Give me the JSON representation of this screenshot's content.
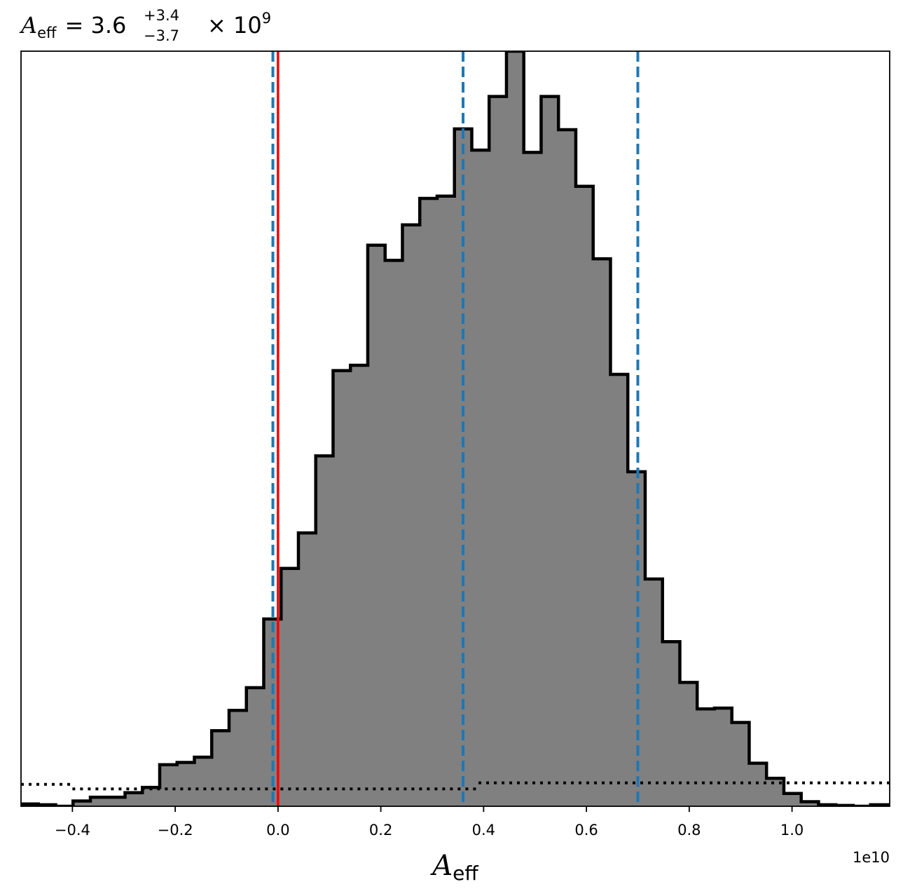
{
  "chart_data": {
    "type": "histogram",
    "title": {
      "variable": "A",
      "variable_sub": "eff",
      "equals": "= ",
      "median": "3.6",
      "plus": "+3.4",
      "minus": "−3.7",
      "times": " × 10",
      "exponent": "9"
    },
    "xlabel": {
      "variable": "A",
      "sub": "eff"
    },
    "x_offset_label": "1e10",
    "xlim": [
      -0.5,
      1.19
    ],
    "ylim": [
      0,
      1.0
    ],
    "x_ticks": [
      {
        "value": -0.4,
        "label": "−0.4"
      },
      {
        "value": -0.2,
        "label": "−0.2"
      },
      {
        "value": 0.0,
        "label": "0.0"
      },
      {
        "value": 0.2,
        "label": "0.2"
      },
      {
        "value": 0.4,
        "label": "0.4"
      },
      {
        "value": 0.6,
        "label": "0.6"
      },
      {
        "value": 0.8,
        "label": "0.8"
      },
      {
        "value": 1.0,
        "label": "1.0"
      }
    ],
    "histogram": {
      "bin_start": -0.5,
      "bin_width": 0.03373,
      "counts": [
        0.003,
        0.002,
        0.0,
        0.007,
        0.012,
        0.012,
        0.018,
        0.025,
        0.055,
        0.058,
        0.065,
        0.1,
        0.127,
        0.157,
        0.248,
        0.315,
        0.362,
        0.464,
        0.577,
        0.584,
        0.743,
        0.723,
        0.77,
        0.805,
        0.808,
        0.897,
        0.869,
        0.94,
        1.0,
        0.866,
        0.94,
        0.896,
        0.821,
        0.725,
        0.572,
        0.443,
        0.301,
        0.218,
        0.164,
        0.129,
        0.13,
        0.111,
        0.057,
        0.037,
        0.017,
        0.006,
        0.002,
        0.001,
        0.0,
        0.002
      ],
      "fill_color": "#808080",
      "edge_color": "#000000"
    },
    "prior": {
      "style": "dotted",
      "color": "#000000",
      "segments": [
        {
          "x0": -0.5,
          "x1": -0.4,
          "y": 0.029
        },
        {
          "x0": -0.4,
          "x1": 0.39,
          "y": 0.023
        },
        {
          "x0": 0.39,
          "x1": 1.19,
          "y": 0.031
        }
      ]
    },
    "quantile_lines": {
      "color": "#1f77b4",
      "style": "dashed",
      "values": [
        -0.01,
        0.36,
        0.7
      ]
    },
    "truth_line": {
      "color": "#ff0000",
      "value": 0.0
    },
    "grid": false
  }
}
